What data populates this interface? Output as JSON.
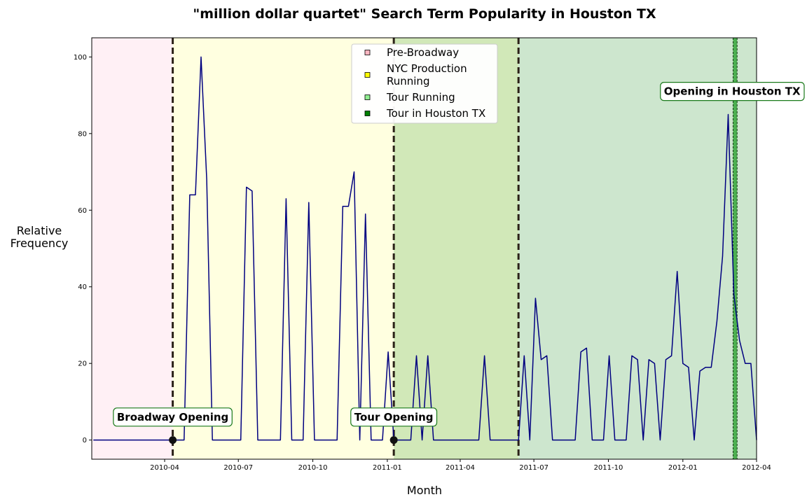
{
  "chart_data": {
    "type": "line",
    "title": "\"million dollar quartet\" Search Term Popularity in Houston TX",
    "xlabel": "Month",
    "ylabel": "Relative\nFrequency",
    "x_axis": {
      "type": "date",
      "range": [
        "2010-01-01",
        "2012-04-01"
      ],
      "ticks": [
        "2010-04",
        "2010-07",
        "2010-10",
        "2011-01",
        "2011-04",
        "2011-07",
        "2011-10",
        "2012-01",
        "2012-04"
      ]
    },
    "y_axis": {
      "range": [
        -5,
        105
      ],
      "ticks": [
        0,
        20,
        40,
        60,
        80,
        100
      ]
    },
    "grid": false,
    "legend_placement": "upper-center",
    "legend": [
      {
        "label": "Pre-Broadway",
        "color": "#ffb6c1"
      },
      {
        "label": "NYC Production Running",
        "color": "#ffff00"
      },
      {
        "label": "Tour Running",
        "color": "#90ee90"
      },
      {
        "label": "Tour in Houston TX",
        "color": "#008000"
      }
    ],
    "periods": [
      {
        "name": "Pre-Broadway",
        "start": "2010-01-01",
        "end": "2010-04-11",
        "color": "#fff0f5"
      },
      {
        "name": "NYC Production Running",
        "start": "2010-04-11",
        "end": "2011-01-09",
        "color": "#ffffe0"
      },
      {
        "name": "Tour Running",
        "start": "2011-01-09",
        "end": "2011-06-12",
        "color": "#d1e8b8"
      },
      {
        "name": "Tour Running",
        "start": "2011-06-12",
        "end": "2012-04-01",
        "color": "#cde6ce"
      },
      {
        "name": "Tour in Houston TX",
        "start": "2012-03-03",
        "end": "2012-03-08",
        "color": "#4caf50"
      }
    ],
    "vlines": [
      "2010-04-11",
      "2011-01-09",
      "2011-06-12"
    ],
    "markers": [
      {
        "date": "2010-04-11",
        "value": 0
      },
      {
        "date": "2011-01-09",
        "value": 0
      }
    ],
    "annotations": [
      {
        "text": "Broadway Opening",
        "date": "2010-04-11",
        "value": 6
      },
      {
        "text": "Tour Opening",
        "date": "2011-01-09",
        "value": 6
      },
      {
        "text": "Opening in Houston TX",
        "date": "2012-03-04",
        "value": 91
      }
    ],
    "series": [
      {
        "color": "#000080",
        "points": [
          [
            "2010-01-03",
            0
          ],
          [
            "2010-01-10",
            0
          ],
          [
            "2010-01-17",
            0
          ],
          [
            "2010-01-24",
            0
          ],
          [
            "2010-01-31",
            0
          ],
          [
            "2010-02-07",
            0
          ],
          [
            "2010-02-14",
            0
          ],
          [
            "2010-02-21",
            0
          ],
          [
            "2010-02-28",
            0
          ],
          [
            "2010-03-07",
            0
          ],
          [
            "2010-03-14",
            0
          ],
          [
            "2010-03-21",
            0
          ],
          [
            "2010-03-28",
            0
          ],
          [
            "2010-04-04",
            0
          ],
          [
            "2010-04-11",
            0
          ],
          [
            "2010-04-18",
            0
          ],
          [
            "2010-04-25",
            0
          ],
          [
            "2010-05-02",
            64
          ],
          [
            "2010-05-09",
            64
          ],
          [
            "2010-05-16",
            100
          ],
          [
            "2010-05-23",
            68
          ],
          [
            "2010-05-30",
            0
          ],
          [
            "2010-06-06",
            0
          ],
          [
            "2010-06-13",
            0
          ],
          [
            "2010-06-20",
            0
          ],
          [
            "2010-06-27",
            0
          ],
          [
            "2010-07-04",
            0
          ],
          [
            "2010-07-11",
            66
          ],
          [
            "2010-07-18",
            65
          ],
          [
            "2010-07-25",
            0
          ],
          [
            "2010-08-01",
            0
          ],
          [
            "2010-08-08",
            0
          ],
          [
            "2010-08-15",
            0
          ],
          [
            "2010-08-22",
            0
          ],
          [
            "2010-08-29",
            63
          ],
          [
            "2010-09-05",
            0
          ],
          [
            "2010-09-12",
            0
          ],
          [
            "2010-09-19",
            0
          ],
          [
            "2010-09-26",
            62
          ],
          [
            "2010-10-03",
            0
          ],
          [
            "2010-10-10",
            0
          ],
          [
            "2010-10-17",
            0
          ],
          [
            "2010-10-24",
            0
          ],
          [
            "2010-10-31",
            0
          ],
          [
            "2010-11-07",
            61
          ],
          [
            "2010-11-14",
            61
          ],
          [
            "2010-11-21",
            70
          ],
          [
            "2010-11-28",
            0
          ],
          [
            "2010-12-05",
            59
          ],
          [
            "2010-12-12",
            0
          ],
          [
            "2010-12-19",
            0
          ],
          [
            "2010-12-26",
            0
          ],
          [
            "2011-01-02",
            23
          ],
          [
            "2011-01-09",
            0
          ],
          [
            "2011-01-16",
            0
          ],
          [
            "2011-01-23",
            0
          ],
          [
            "2011-01-30",
            0
          ],
          [
            "2011-02-06",
            22
          ],
          [
            "2011-02-13",
            0
          ],
          [
            "2011-02-20",
            22
          ],
          [
            "2011-02-27",
            0
          ],
          [
            "2011-03-06",
            0
          ],
          [
            "2011-03-13",
            0
          ],
          [
            "2011-03-20",
            0
          ],
          [
            "2011-03-27",
            0
          ],
          [
            "2011-04-03",
            0
          ],
          [
            "2011-04-10",
            0
          ],
          [
            "2011-04-17",
            0
          ],
          [
            "2011-04-24",
            0
          ],
          [
            "2011-05-01",
            22
          ],
          [
            "2011-05-08",
            0
          ],
          [
            "2011-05-15",
            0
          ],
          [
            "2011-05-22",
            0
          ],
          [
            "2011-05-29",
            0
          ],
          [
            "2011-06-05",
            0
          ],
          [
            "2011-06-12",
            0
          ],
          [
            "2011-06-19",
            22
          ],
          [
            "2011-06-26",
            0
          ],
          [
            "2011-07-03",
            37
          ],
          [
            "2011-07-10",
            21
          ],
          [
            "2011-07-17",
            22
          ],
          [
            "2011-07-24",
            0
          ],
          [
            "2011-07-31",
            0
          ],
          [
            "2011-08-07",
            0
          ],
          [
            "2011-08-14",
            0
          ],
          [
            "2011-08-21",
            0
          ],
          [
            "2011-08-28",
            23
          ],
          [
            "2011-09-04",
            24
          ],
          [
            "2011-09-11",
            0
          ],
          [
            "2011-09-18",
            0
          ],
          [
            "2011-09-25",
            0
          ],
          [
            "2011-10-02",
            22
          ],
          [
            "2011-10-09",
            0
          ],
          [
            "2011-10-16",
            0
          ],
          [
            "2011-10-23",
            0
          ],
          [
            "2011-10-30",
            22
          ],
          [
            "2011-11-06",
            21
          ],
          [
            "2011-11-13",
            0
          ],
          [
            "2011-11-20",
            21
          ],
          [
            "2011-11-27",
            20
          ],
          [
            "2011-12-04",
            0
          ],
          [
            "2011-12-11",
            21
          ],
          [
            "2011-12-18",
            22
          ],
          [
            "2011-12-25",
            44
          ],
          [
            "2012-01-01",
            20
          ],
          [
            "2012-01-08",
            19
          ],
          [
            "2012-01-15",
            0
          ],
          [
            "2012-01-22",
            18
          ],
          [
            "2012-01-29",
            19
          ],
          [
            "2012-02-05",
            19
          ],
          [
            "2012-02-12",
            31
          ],
          [
            "2012-02-19",
            48
          ],
          [
            "2012-02-26",
            85
          ],
          [
            "2012-03-04",
            38
          ],
          [
            "2012-03-11",
            26
          ],
          [
            "2012-03-18",
            20
          ],
          [
            "2012-03-25",
            20
          ],
          [
            "2012-04-01",
            0
          ]
        ]
      }
    ]
  }
}
